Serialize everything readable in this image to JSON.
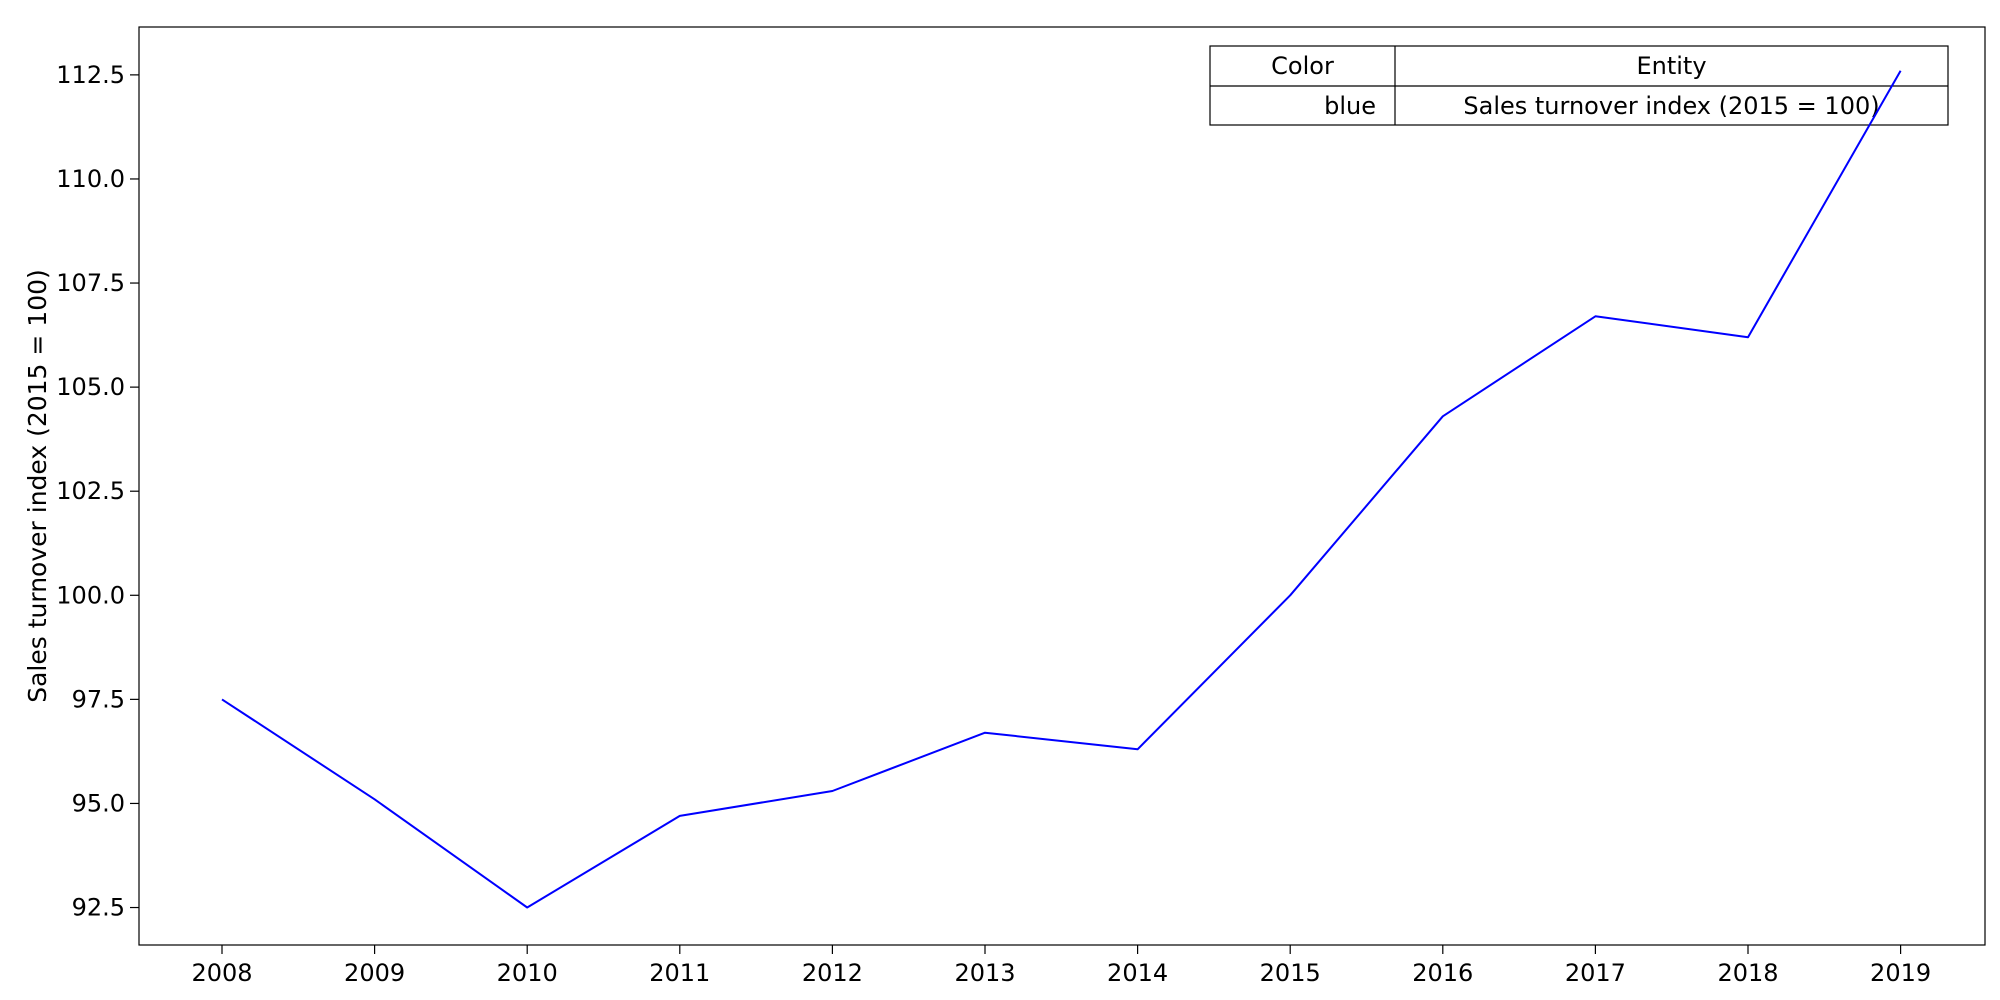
{
  "chart_data": {
    "type": "line",
    "title": "",
    "xlabel": "",
    "ylabel": "Sales turnover index (2015 = 100)",
    "x": [
      "2008",
      "2009",
      "2010",
      "2011",
      "2012",
      "2013",
      "2014",
      "2015",
      "2016",
      "2017",
      "2018",
      "2019"
    ],
    "series": [
      {
        "name": "Sales turnover index (2015 = 100)",
        "color": "#0000ff",
        "values": [
          97.5,
          95.1,
          92.5,
          94.7,
          95.3,
          96.7,
          96.3,
          100.0,
          104.3,
          106.7,
          106.2,
          112.6
        ]
      }
    ],
    "yticks": [
      "92.5",
      "95.0",
      "97.5",
      "100.0",
      "102.5",
      "105.0",
      "107.5",
      "110.0",
      "112.5"
    ],
    "ylim": [
      91.6,
      113.65
    ],
    "grid": false,
    "legend": {
      "placement": "top-right",
      "header": [
        "Color",
        "Entity"
      ],
      "rows": [
        [
          "blue",
          "Sales turnover index (2015 = 100)"
        ]
      ]
    }
  }
}
